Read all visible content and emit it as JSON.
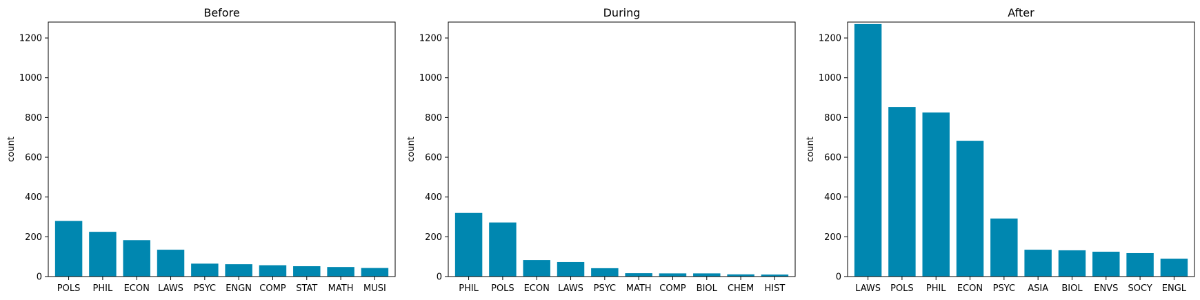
{
  "colors": {
    "bar": "#0087b0",
    "axis": "#000000"
  },
  "chart_data": [
    {
      "type": "bar",
      "title": "Before",
      "ylabel": "count",
      "ylim": [
        0,
        1280
      ],
      "yticks": [
        0,
        200,
        400,
        600,
        800,
        1000,
        1200
      ],
      "categories": [
        "POLS",
        "PHIL",
        "ECON",
        "LAWS",
        "PSYC",
        "ENGN",
        "COMP",
        "STAT",
        "MATH",
        "MUSI"
      ],
      "values": [
        280,
        225,
        183,
        135,
        65,
        62,
        57,
        52,
        48,
        43
      ]
    },
    {
      "type": "bar",
      "title": "During",
      "ylabel": "count",
      "ylim": [
        0,
        1280
      ],
      "yticks": [
        0,
        200,
        400,
        600,
        800,
        1000,
        1200
      ],
      "categories": [
        "PHIL",
        "POLS",
        "ECON",
        "LAWS",
        "PSYC",
        "MATH",
        "COMP",
        "BIOL",
        "CHEM",
        "HIST"
      ],
      "values": [
        320,
        272,
        83,
        73,
        42,
        17,
        16,
        16,
        11,
        10
      ]
    },
    {
      "type": "bar",
      "title": "After",
      "ylabel": "count",
      "ylim": [
        0,
        1280
      ],
      "yticks": [
        0,
        200,
        400,
        600,
        800,
        1000,
        1200
      ],
      "categories": [
        "LAWS",
        "POLS",
        "PHIL",
        "ECON",
        "PSYC",
        "ASIA",
        "BIOL",
        "ENVS",
        "SOCY",
        "ENGL"
      ],
      "values": [
        1270,
        853,
        825,
        683,
        292,
        135,
        132,
        125,
        118,
        90
      ]
    }
  ]
}
